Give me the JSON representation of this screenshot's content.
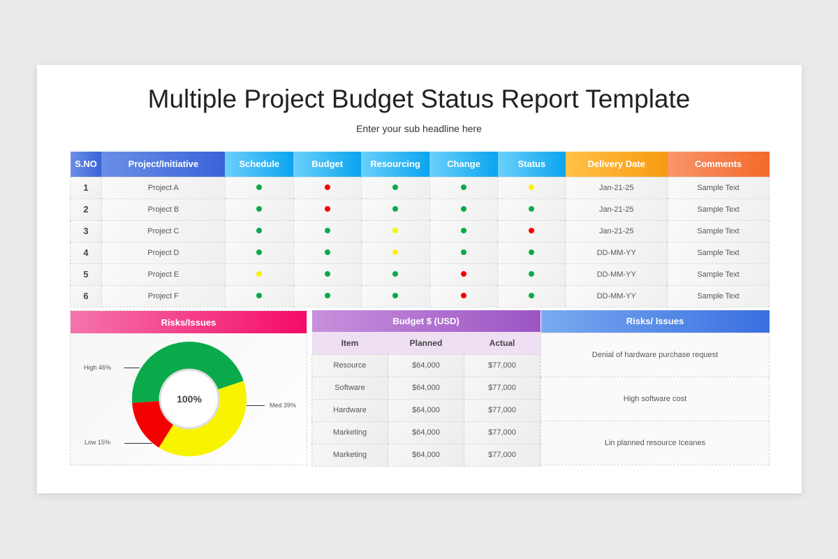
{
  "title": "Multiple Project Budget Status Report Template",
  "subtitle": "Enter your sub headline here",
  "colors": {
    "green": "#0aaa4a",
    "red": "#f40000",
    "yellow": "#f8f400"
  },
  "status_table": {
    "headers": [
      "S.NO",
      "Project/Initiative",
      "Schedule",
      "Budget",
      "Resourcing",
      "Change",
      "Status",
      "Delivery Date",
      "Comments"
    ],
    "rows": [
      {
        "sno": "1",
        "project": "Project A",
        "schedule": "green",
        "budget": "red",
        "resourcing": "green",
        "change": "green",
        "status": "yellow",
        "date": "Jan-21-25",
        "comments": "Sample Text"
      },
      {
        "sno": "2",
        "project": "Project B",
        "schedule": "green",
        "budget": "red",
        "resourcing": "green",
        "change": "green",
        "status": "green",
        "date": "Jan-21-25",
        "comments": "Sample Text"
      },
      {
        "sno": "3",
        "project": "Project C",
        "schedule": "green",
        "budget": "green",
        "resourcing": "yellow",
        "change": "green",
        "status": "red",
        "date": "Jan-21-25",
        "comments": "Sample Text"
      },
      {
        "sno": "4",
        "project": "Project D",
        "schedule": "green",
        "budget": "green",
        "resourcing": "yellow",
        "change": "green",
        "status": "green",
        "date": "DD-MM-YY",
        "comments": "Sample Text"
      },
      {
        "sno": "5",
        "project": "Project E",
        "schedule": "yellow",
        "budget": "green",
        "resourcing": "green",
        "change": "red",
        "status": "green",
        "date": "DD-MM-YY",
        "comments": "Sample Text"
      },
      {
        "sno": "6",
        "project": "Project F",
        "schedule": "green",
        "budget": "green",
        "resourcing": "green",
        "change": "red",
        "status": "green",
        "date": "DD-MM-YY",
        "comments": "Sample Text"
      }
    ]
  },
  "risks_panel": {
    "title": "Risks/Issues",
    "center": "100%"
  },
  "chart_data": {
    "type": "pie",
    "donut": true,
    "center_label": "100%",
    "categories": [
      "High",
      "Med",
      "Low"
    ],
    "values": [
      46,
      39,
      15
    ],
    "labels": [
      "High 46%",
      "Med 39%",
      "Low 15%"
    ],
    "colors": [
      "#0aaa4a",
      "#f8f400",
      "#f40000"
    ]
  },
  "budget": {
    "title": "Budget $ (USD)",
    "headers": [
      "Item",
      "Planned",
      "Actual"
    ],
    "rows": [
      [
        "Resource",
        "$64,000",
        "$77,000"
      ],
      [
        "Software",
        "$64,000",
        "$77,000"
      ],
      [
        "Hardware",
        "$64,000",
        "$77,000"
      ],
      [
        "Marketing",
        "$64,000",
        "$77,000"
      ],
      [
        "Marketing",
        "$64,000",
        "$77,000"
      ]
    ]
  },
  "risks_list": {
    "title": "Risks/ Issues",
    "items": [
      "Denial of hardware purchase request",
      "High software cost",
      "Lin planned resource Iceanes"
    ]
  }
}
